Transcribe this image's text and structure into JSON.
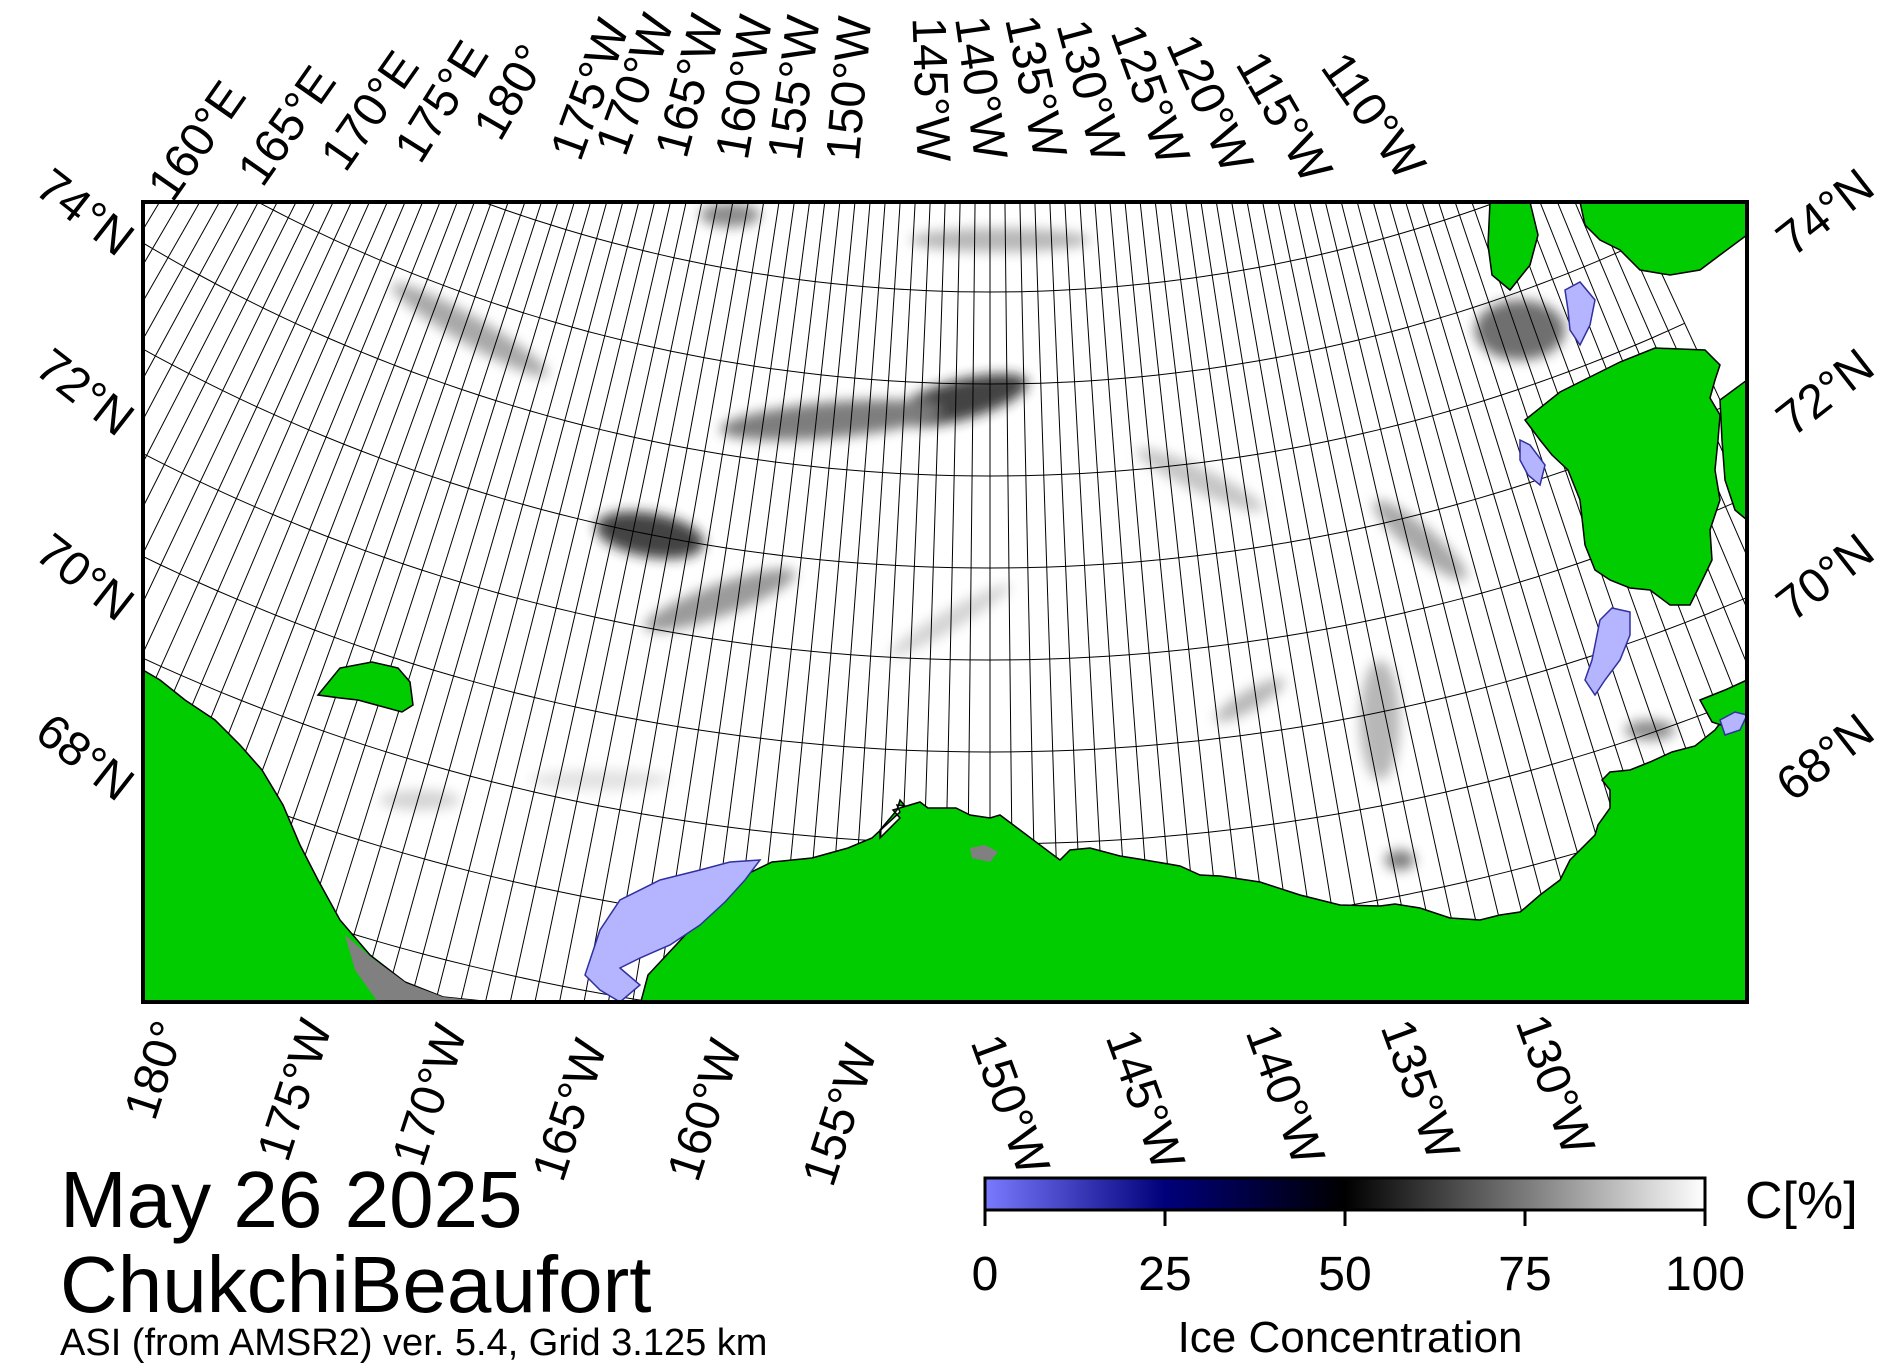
{
  "header": {
    "date": "May 26 2025",
    "region": "ChukchiBeaufort",
    "source": "ASI (from AMSR2) ver. 5.4,  Grid 3.125 km"
  },
  "map": {
    "top_lon_labels": [
      "160°E",
      "165°E",
      "170°E",
      "175°E",
      "180°",
      "175°W",
      "170°W",
      "165°W",
      "160°W",
      "155°W",
      "150°W",
      "145°W",
      "140°W",
      "135°W",
      "130°W",
      "125°W",
      "120°W",
      "115°W",
      "110°W"
    ],
    "bottom_lon_labels": [
      "180°",
      "175°W",
      "170°W",
      "165°W",
      "160°W",
      "155°W",
      "150°W",
      "145°W",
      "140°W",
      "135°W",
      "130°W"
    ],
    "left_lat_labels": [
      "74°N",
      "72°N",
      "70°N",
      "68°N"
    ],
    "right_lat_labels": [
      "74°N",
      "72°N",
      "70°N",
      "68°N"
    ],
    "colors": {
      "land": "#00cc00",
      "ocean": "#ffffff",
      "low_concentration": "#b4b4ff",
      "missing": "#808080",
      "grid": "#000000"
    }
  },
  "colorbar": {
    "ticks": [
      "0",
      "25",
      "50",
      "75",
      "100"
    ],
    "unit": "C[%]",
    "label": "Ice Concentration",
    "stops": [
      "#7a7aff",
      "#00007a",
      "#000000",
      "#7a7a7a",
      "#ffffff"
    ]
  }
}
